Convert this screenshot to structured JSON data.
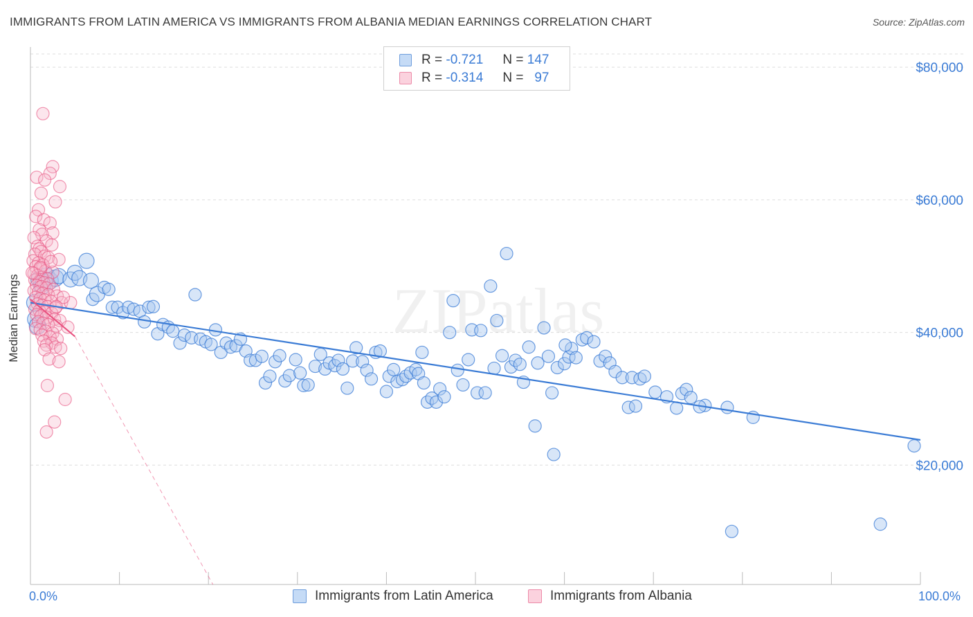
{
  "title": "IMMIGRANTS FROM LATIN AMERICA VS IMMIGRANTS FROM ALBANIA MEDIAN EARNINGS CORRELATION CHART",
  "source": "Source: ZipAtlas.com",
  "watermark": "ZIPatlas",
  "legend": {
    "rows": [
      {
        "r_label": "R =",
        "r_value": "-0.721",
        "n_label": "N =",
        "n_value": "147",
        "color": "#a9c8f0"
      },
      {
        "r_label": "R =",
        "r_value": "-0.314",
        "n_label": "N =",
        "n_value": "97",
        "color": "#f5b8cb"
      }
    ]
  },
  "bottom_legend": [
    "Immigrants from Latin America",
    "Immigrants from Albania"
  ],
  "x_axis": {
    "min_label": "0.0%",
    "max_label": "100.0%"
  },
  "colors": {
    "blue": "#3a7bd5",
    "blue_fill": "#a9c8f0",
    "pink": "#e8507e",
    "pink_fill": "#f5b8cb",
    "grid": "#dddddd"
  },
  "chart_data": {
    "type": "scatter",
    "title": "IMMIGRANTS FROM LATIN AMERICA VS IMMIGRANTS FROM ALBANIA MEDIAN EARNINGS CORRELATION CHART",
    "xlabel": "",
    "ylabel": "Median Earnings",
    "xlim": [
      0,
      100
    ],
    "ylim": [
      2000,
      82000
    ],
    "y_ticks": [
      20000,
      40000,
      60000,
      80000
    ],
    "y_tick_labels": [
      "$20,000",
      "$40,000",
      "$60,000",
      "$80,000"
    ],
    "grid": true,
    "legend_position": "top-center",
    "series": [
      {
        "name": "Immigrants from Latin America",
        "color": "#3a7bd5",
        "trend": {
          "x": [
            0,
            100
          ],
          "y": [
            44500,
            23800
          ]
        },
        "points": [
          [
            0.5,
            44500
          ],
          [
            0.6,
            42000
          ],
          [
            0.8,
            41000
          ],
          [
            1.0,
            48000
          ],
          [
            1.3,
            47000
          ],
          [
            1.5,
            47500
          ],
          [
            1.8,
            48500
          ],
          [
            2.2,
            47800
          ],
          [
            2.8,
            48200
          ],
          [
            3.2,
            48500
          ],
          [
            4.5,
            48000
          ],
          [
            5.0,
            49000
          ],
          [
            5.5,
            48200
          ],
          [
            6.3,
            50800
          ],
          [
            6.8,
            47800
          ],
          [
            7.0,
            45000
          ],
          [
            7.5,
            45800
          ],
          [
            8.3,
            46800
          ],
          [
            8.8,
            46500
          ],
          [
            9.2,
            43800
          ],
          [
            9.8,
            43800
          ],
          [
            10.4,
            43000
          ],
          [
            11.0,
            43800
          ],
          [
            11.6,
            43500
          ],
          [
            12.3,
            43200
          ],
          [
            12.8,
            41600
          ],
          [
            13.3,
            43800
          ],
          [
            13.8,
            43900
          ],
          [
            14.3,
            39800
          ],
          [
            14.9,
            41200
          ],
          [
            15.5,
            40800
          ],
          [
            16.0,
            40200
          ],
          [
            16.8,
            38400
          ],
          [
            17.3,
            39600
          ],
          [
            18.1,
            39200
          ],
          [
            18.5,
            45700
          ],
          [
            19.1,
            39000
          ],
          [
            19.7,
            38600
          ],
          [
            20.3,
            38200
          ],
          [
            20.8,
            40400
          ],
          [
            21.4,
            37000
          ],
          [
            22.0,
            38400
          ],
          [
            22.5,
            37800
          ],
          [
            23.1,
            38000
          ],
          [
            23.6,
            39000
          ],
          [
            24.2,
            37200
          ],
          [
            24.7,
            35800
          ],
          [
            25.3,
            35800
          ],
          [
            26.0,
            36400
          ],
          [
            26.4,
            32400
          ],
          [
            26.9,
            33400
          ],
          [
            27.5,
            35600
          ],
          [
            28.0,
            36500
          ],
          [
            28.6,
            32700
          ],
          [
            29.1,
            33500
          ],
          [
            29.8,
            35900
          ],
          [
            30.3,
            33900
          ],
          [
            30.7,
            32000
          ],
          [
            31.2,
            32100
          ],
          [
            32.0,
            34900
          ],
          [
            32.6,
            36700
          ],
          [
            33.1,
            34500
          ],
          [
            33.6,
            35400
          ],
          [
            34.2,
            35000
          ],
          [
            34.6,
            35800
          ],
          [
            35.1,
            34500
          ],
          [
            35.6,
            31600
          ],
          [
            36.2,
            35700
          ],
          [
            36.6,
            37700
          ],
          [
            37.3,
            35600
          ],
          [
            37.8,
            34300
          ],
          [
            38.3,
            33000
          ],
          [
            38.8,
            37000
          ],
          [
            39.3,
            37200
          ],
          [
            40.0,
            31100
          ],
          [
            40.3,
            33400
          ],
          [
            40.8,
            34400
          ],
          [
            41.2,
            32600
          ],
          [
            41.8,
            32900
          ],
          [
            42.2,
            33400
          ],
          [
            42.7,
            33900
          ],
          [
            43.3,
            34400
          ],
          [
            43.6,
            33800
          ],
          [
            44.0,
            37000
          ],
          [
            44.6,
            29500
          ],
          [
            45.1,
            30100
          ],
          [
            45.6,
            29500
          ],
          [
            46.0,
            31500
          ],
          [
            46.5,
            30300
          ],
          [
            47.1,
            40000
          ],
          [
            47.5,
            44800
          ],
          [
            48.0,
            34300
          ],
          [
            48.6,
            32100
          ],
          [
            49.2,
            35900
          ],
          [
            49.6,
            40400
          ],
          [
            50.2,
            30900
          ],
          [
            50.6,
            40300
          ],
          [
            51.1,
            30900
          ],
          [
            51.7,
            47000
          ],
          [
            52.1,
            34600
          ],
          [
            52.4,
            41800
          ],
          [
            53.0,
            36500
          ],
          [
            53.5,
            51900
          ],
          [
            54.0,
            34800
          ],
          [
            54.5,
            35800
          ],
          [
            55.0,
            35200
          ],
          [
            55.4,
            32500
          ],
          [
            56.0,
            37800
          ],
          [
            56.7,
            25900
          ],
          [
            57.0,
            35400
          ],
          [
            57.7,
            40700
          ],
          [
            58.2,
            36400
          ],
          [
            58.6,
            30900
          ],
          [
            58.8,
            21600
          ],
          [
            59.2,
            34700
          ],
          [
            60.0,
            35300
          ],
          [
            60.5,
            36300
          ],
          [
            60.8,
            37600
          ],
          [
            61.3,
            36200
          ],
          [
            62.0,
            38900
          ],
          [
            62.5,
            39200
          ],
          [
            63.3,
            38600
          ],
          [
            64.0,
            35700
          ],
          [
            64.6,
            36400
          ],
          [
            65.1,
            35400
          ],
          [
            65.7,
            34100
          ],
          [
            66.5,
            33200
          ],
          [
            67.2,
            28700
          ],
          [
            67.6,
            33200
          ],
          [
            68.5,
            33000
          ],
          [
            69.0,
            33400
          ],
          [
            70.2,
            31000
          ],
          [
            71.5,
            30300
          ],
          [
            72.6,
            28600
          ],
          [
            73.2,
            30800
          ],
          [
            73.7,
            31400
          ],
          [
            74.2,
            30200
          ],
          [
            75.8,
            29000
          ],
          [
            78.3,
            28700
          ],
          [
            81.2,
            27200
          ],
          [
            78.8,
            10000
          ],
          [
            95.5,
            11100
          ],
          [
            99.3,
            22900
          ],
          [
            60.1,
            38100
          ],
          [
            75.2,
            28800
          ],
          [
            68.0,
            28900
          ],
          [
            44.2,
            32400
          ]
        ]
      },
      {
        "name": "Immigrants from Albania",
        "color": "#e8507e",
        "trend": {
          "x": [
            0,
            5
          ],
          "y": [
            45000,
            39400
          ]
        },
        "trend_extension": {
          "x": [
            5,
            20.5
          ],
          "y": [
            39400,
            2000
          ]
        },
        "points": [
          [
            1.4,
            73000
          ],
          [
            2.5,
            65000
          ],
          [
            2.2,
            64000
          ],
          [
            0.7,
            63400
          ],
          [
            1.6,
            63000
          ],
          [
            3.3,
            62000
          ],
          [
            1.2,
            61000
          ],
          [
            2.8,
            59700
          ],
          [
            0.9,
            58500
          ],
          [
            0.6,
            57500
          ],
          [
            1.5,
            57000
          ],
          [
            2.2,
            56500
          ],
          [
            1.0,
            55500
          ],
          [
            2.5,
            55000
          ],
          [
            1.3,
            54800
          ],
          [
            0.4,
            54300
          ],
          [
            1.8,
            53800
          ],
          [
            2.4,
            53200
          ],
          [
            0.8,
            53000
          ],
          [
            1.0,
            52600
          ],
          [
            1.2,
            52200
          ],
          [
            0.5,
            51800
          ],
          [
            1.6,
            51500
          ],
          [
            2.0,
            51300
          ],
          [
            3.2,
            51000
          ],
          [
            0.3,
            50800
          ],
          [
            0.9,
            50500
          ],
          [
            1.4,
            50200
          ],
          [
            0.6,
            49900
          ],
          [
            1.1,
            49600
          ],
          [
            1.7,
            49300
          ],
          [
            2.5,
            49100
          ],
          [
            0.4,
            48900
          ],
          [
            0.8,
            48600
          ],
          [
            1.3,
            48300
          ],
          [
            1.9,
            48100
          ],
          [
            0.5,
            47900
          ],
          [
            1.0,
            47700
          ],
          [
            1.5,
            47500
          ],
          [
            2.1,
            47300
          ],
          [
            0.7,
            47100
          ],
          [
            1.2,
            46900
          ],
          [
            1.8,
            46700
          ],
          [
            2.6,
            46500
          ],
          [
            0.4,
            46300
          ],
          [
            0.9,
            46100
          ],
          [
            1.4,
            45900
          ],
          [
            2.0,
            45700
          ],
          [
            3.0,
            45500
          ],
          [
            0.6,
            45300
          ],
          [
            1.1,
            45100
          ],
          [
            1.6,
            44900
          ],
          [
            2.3,
            44700
          ],
          [
            3.5,
            44500
          ],
          [
            0.8,
            44300
          ],
          [
            1.3,
            44100
          ],
          [
            1.9,
            43900
          ],
          [
            2.8,
            43700
          ],
          [
            0.5,
            43500
          ],
          [
            1.0,
            43300
          ],
          [
            1.6,
            43100
          ],
          [
            2.4,
            42900
          ],
          [
            0.7,
            42700
          ],
          [
            1.2,
            42500
          ],
          [
            1.8,
            42300
          ],
          [
            2.7,
            42000
          ],
          [
            3.3,
            41800
          ],
          [
            0.9,
            41600
          ],
          [
            1.4,
            41400
          ],
          [
            2.0,
            41200
          ],
          [
            2.9,
            41000
          ],
          [
            4.2,
            40800
          ],
          [
            0.6,
            40600
          ],
          [
            1.1,
            40400
          ],
          [
            1.7,
            40200
          ],
          [
            2.5,
            39900
          ],
          [
            1.3,
            39600
          ],
          [
            2.2,
            39300
          ],
          [
            3.0,
            39000
          ],
          [
            1.5,
            38700
          ],
          [
            2.4,
            38400
          ],
          [
            1.8,
            38100
          ],
          [
            2.8,
            37800
          ],
          [
            3.4,
            37600
          ],
          [
            1.6,
            37400
          ],
          [
            2.1,
            36000
          ],
          [
            3.2,
            35600
          ],
          [
            1.9,
            32000
          ],
          [
            3.9,
            29900
          ],
          [
            2.7,
            26500
          ],
          [
            1.8,
            25000
          ],
          [
            4.5,
            44500
          ],
          [
            3.7,
            45300
          ],
          [
            2.9,
            43900
          ],
          [
            1.1,
            49800
          ],
          [
            2.3,
            50700
          ],
          [
            0.2,
            49000
          ]
        ]
      }
    ]
  }
}
